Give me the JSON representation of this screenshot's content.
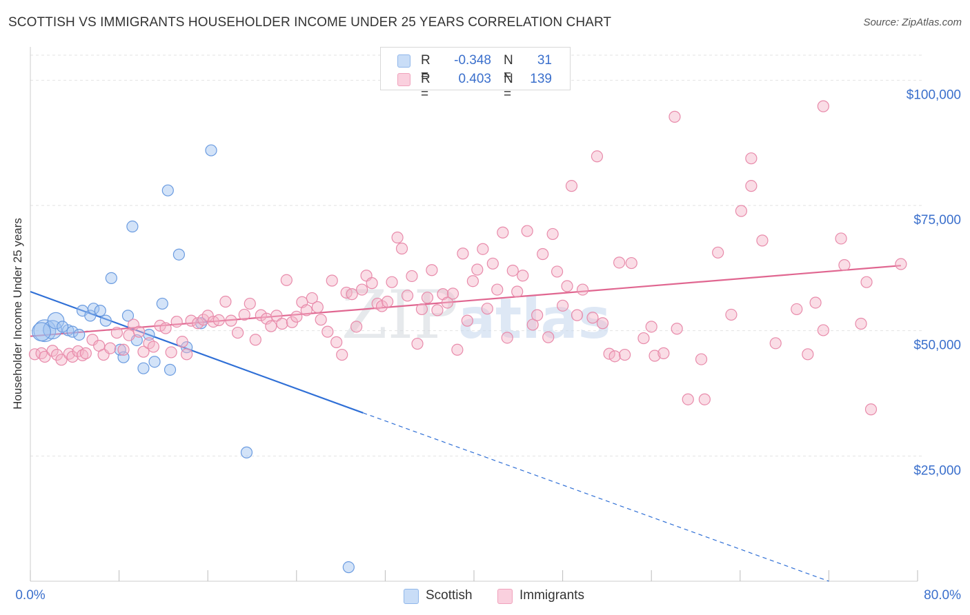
{
  "title": "SCOTTISH VS IMMIGRANTS HOUSEHOLDER INCOME UNDER 25 YEARS CORRELATION CHART",
  "source": "Source: ZipAtlas.com",
  "watermark": "ZIPatlas",
  "legend": {
    "rows": [
      {
        "r_label": "R =",
        "r_value": "-0.348",
        "n_label": "N =",
        "n_value": "31",
        "color": "#9ec2f0"
      },
      {
        "r_label": "R =",
        "r_value": "0.403",
        "n_label": "N =",
        "n_value": "139",
        "color": "#f5b3c8"
      }
    ]
  },
  "bottom_legend": [
    {
      "label": "Scottish",
      "color": "#9ec2f0"
    },
    {
      "label": "Immigrants",
      "color": "#f5b3c8"
    }
  ],
  "chart_data": {
    "type": "scatter",
    "title": "SCOTTISH VS IMMIGRANTS HOUSEHOLDER INCOME UNDER 25 YEARS CORRELATION CHART",
    "xlabel": "",
    "ylabel": "Householder Income Under 25 years",
    "xlim": [
      0,
      80
    ],
    "ylim": [
      0,
      105000
    ],
    "x_tick_labels": [
      "0.0%",
      "80.0%"
    ],
    "y_ticks": [
      25000,
      50000,
      75000,
      100000
    ],
    "y_tick_labels": [
      "$25,000",
      "$50,000",
      "$75,000",
      "$100,000"
    ],
    "grid": true,
    "legend_position": "top-center",
    "series": [
      {
        "name": "Scottish",
        "color": "#9ec2f0",
        "stroke": "#6a9be0",
        "trend_color": "#2f6fd6",
        "trend": {
          "x0": 0,
          "y0": 57800,
          "x1": 30,
          "y1": 33600,
          "dash_to_x": 72,
          "dash_to_y": 0
        },
        "points": [
          [
            1.3,
            50000,
            3
          ],
          [
            2.0,
            50200,
            2
          ],
          [
            1.0,
            49800,
            2
          ],
          [
            2.3,
            52000,
            1.5
          ],
          [
            3.4,
            50100,
            1
          ],
          [
            3.8,
            49800,
            1
          ],
          [
            4.7,
            54000,
            1
          ],
          [
            4.4,
            49200,
            1
          ],
          [
            5.4,
            53000,
            1
          ],
          [
            5.7,
            54400,
            1
          ],
          [
            6.3,
            54000,
            1
          ],
          [
            6.8,
            52000,
            1
          ],
          [
            7.3,
            60500,
            1
          ],
          [
            8.1,
            46200,
            1
          ],
          [
            8.4,
            44700,
            1
          ],
          [
            8.8,
            53000,
            1
          ],
          [
            9.2,
            70800,
            1
          ],
          [
            9.6,
            48100,
            1
          ],
          [
            10.2,
            42500,
            1
          ],
          [
            10.7,
            49200,
            1
          ],
          [
            11.2,
            43800,
            1
          ],
          [
            11.9,
            55400,
            1
          ],
          [
            12.4,
            78000,
            1
          ],
          [
            12.6,
            42200,
            1
          ],
          [
            13.4,
            65200,
            1
          ],
          [
            14.1,
            46700,
            1
          ],
          [
            16.3,
            86000,
            1
          ],
          [
            19.5,
            25700,
            1
          ],
          [
            28.7,
            2800,
            1
          ],
          [
            15.4,
            51500,
            1
          ],
          [
            2.9,
            50800,
            1
          ]
        ]
      },
      {
        "name": "Immigrants",
        "color": "#f5b3c8",
        "stroke": "#e88aaa",
        "trend_color": "#e06690",
        "trend": {
          "x0": 0,
          "y0": 48900,
          "x1": 78.5,
          "y1": 63000
        },
        "points": [
          [
            0.4,
            45300,
            1
          ],
          [
            1.0,
            45500,
            1
          ],
          [
            1.3,
            44800,
            1
          ],
          [
            2.0,
            46000,
            1
          ],
          [
            2.4,
            45200,
            1
          ],
          [
            2.8,
            44200,
            1
          ],
          [
            3.5,
            45400,
            1
          ],
          [
            3.8,
            44800,
            1
          ],
          [
            4.3,
            45900,
            1
          ],
          [
            4.7,
            45100,
            1
          ],
          [
            5.0,
            45500,
            1
          ],
          [
            5.6,
            48200,
            1
          ],
          [
            6.2,
            47000,
            1
          ],
          [
            6.6,
            45200,
            1
          ],
          [
            7.2,
            46500,
            1
          ],
          [
            7.8,
            49600,
            1
          ],
          [
            8.4,
            46200,
            1
          ],
          [
            8.9,
            49100,
            1
          ],
          [
            9.3,
            51200,
            1
          ],
          [
            9.8,
            49800,
            1
          ],
          [
            10.2,
            45800,
            1
          ],
          [
            10.7,
            47500,
            1
          ],
          [
            11.1,
            46800,
            1
          ],
          [
            11.7,
            51000,
            1
          ],
          [
            12.2,
            50500,
            1
          ],
          [
            12.7,
            45700,
            1
          ],
          [
            13.2,
            51800,
            1
          ],
          [
            13.7,
            47800,
            1
          ],
          [
            14.1,
            45300,
            1
          ],
          [
            14.5,
            52000,
            1
          ],
          [
            15.1,
            51500,
            1
          ],
          [
            15.6,
            52200,
            1
          ],
          [
            16.0,
            53000,
            1
          ],
          [
            16.5,
            51800,
            1
          ],
          [
            17.0,
            52100,
            1
          ],
          [
            17.6,
            55800,
            1
          ],
          [
            18.1,
            52000,
            1
          ],
          [
            18.7,
            49600,
            1
          ],
          [
            19.3,
            53200,
            1
          ],
          [
            19.8,
            55400,
            1
          ],
          [
            20.3,
            48200,
            1
          ],
          [
            20.8,
            53100,
            1
          ],
          [
            21.3,
            52400,
            1
          ],
          [
            21.7,
            50900,
            1
          ],
          [
            22.2,
            53000,
            1
          ],
          [
            22.7,
            51400,
            1
          ],
          [
            23.1,
            60100,
            1
          ],
          [
            23.6,
            51700,
            1
          ],
          [
            24.0,
            52800,
            1
          ],
          [
            24.5,
            55700,
            1
          ],
          [
            24.9,
            54100,
            1
          ],
          [
            25.4,
            56500,
            1
          ],
          [
            25.9,
            54700,
            1
          ],
          [
            26.2,
            52200,
            1
          ],
          [
            26.8,
            49800,
            1
          ],
          [
            27.2,
            60000,
            1
          ],
          [
            27.6,
            47700,
            1
          ],
          [
            28.1,
            45200,
            1
          ],
          [
            28.5,
            57600,
            1
          ],
          [
            29.0,
            57300,
            1
          ],
          [
            29.4,
            50800,
            1
          ],
          [
            29.9,
            58200,
            1
          ],
          [
            30.3,
            61000,
            1
          ],
          [
            30.8,
            59500,
            1
          ],
          [
            31.3,
            55400,
            1
          ],
          [
            31.7,
            54900,
            1
          ],
          [
            32.2,
            55800,
            1
          ],
          [
            32.6,
            59700,
            1
          ],
          [
            33.1,
            68600,
            1
          ],
          [
            33.5,
            66400,
            1
          ],
          [
            34.0,
            57000,
            1
          ],
          [
            34.4,
            60900,
            1
          ],
          [
            34.9,
            47400,
            1
          ],
          [
            35.3,
            54300,
            1
          ],
          [
            35.8,
            56600,
            1
          ],
          [
            36.2,
            62100,
            1
          ],
          [
            36.7,
            54100,
            1
          ],
          [
            37.2,
            57300,
            1
          ],
          [
            37.6,
            55600,
            1
          ],
          [
            38.1,
            57400,
            1
          ],
          [
            38.5,
            46200,
            1
          ],
          [
            39.0,
            65400,
            1
          ],
          [
            39.4,
            52000,
            1
          ],
          [
            39.9,
            59900,
            1
          ],
          [
            40.3,
            62200,
            1
          ],
          [
            40.8,
            66300,
            1
          ],
          [
            41.2,
            54400,
            1
          ],
          [
            41.7,
            63400,
            1
          ],
          [
            42.1,
            58200,
            1
          ],
          [
            42.6,
            69600,
            1
          ],
          [
            43.0,
            48600,
            1
          ],
          [
            43.5,
            62000,
            1
          ],
          [
            43.9,
            57800,
            1
          ],
          [
            44.4,
            61000,
            1
          ],
          [
            44.8,
            69900,
            1
          ],
          [
            45.3,
            51200,
            1
          ],
          [
            45.7,
            53100,
            1
          ],
          [
            46.2,
            65300,
            1
          ],
          [
            46.7,
            48700,
            1
          ],
          [
            47.1,
            69300,
            1
          ],
          [
            47.5,
            61800,
            1
          ],
          [
            48.0,
            55000,
            1
          ],
          [
            48.4,
            58900,
            1
          ],
          [
            48.8,
            78900,
            1
          ],
          [
            49.3,
            53100,
            1
          ],
          [
            49.8,
            58200,
            1
          ],
          [
            50.7,
            52600,
            1
          ],
          [
            51.1,
            84800,
            1
          ],
          [
            51.6,
            51500,
            1
          ],
          [
            52.2,
            45400,
            1
          ],
          [
            52.7,
            44900,
            1
          ],
          [
            53.1,
            63600,
            1
          ],
          [
            53.6,
            45200,
            1
          ],
          [
            54.2,
            63500,
            1
          ],
          [
            55.3,
            48500,
            1
          ],
          [
            56.0,
            50800,
            1
          ],
          [
            56.3,
            45000,
            1
          ],
          [
            57.1,
            45500,
            1
          ],
          [
            58.1,
            92700,
            1
          ],
          [
            58.3,
            50400,
            1
          ],
          [
            59.3,
            36300,
            1
          ],
          [
            60.8,
            36300,
            1
          ],
          [
            60.5,
            44300,
            1
          ],
          [
            62.0,
            65600,
            1
          ],
          [
            63.2,
            53200,
            1
          ],
          [
            64.1,
            73900,
            1
          ],
          [
            65.0,
            84400,
            1
          ],
          [
            65.0,
            78900,
            1
          ],
          [
            66.0,
            68000,
            1
          ],
          [
            67.2,
            47500,
            1
          ],
          [
            69.1,
            54300,
            1
          ],
          [
            70.1,
            45300,
            1
          ],
          [
            70.8,
            55600,
            1
          ],
          [
            71.5,
            50100,
            1
          ],
          [
            71.5,
            94800,
            1
          ],
          [
            73.1,
            68400,
            1
          ],
          [
            73.4,
            63100,
            1
          ],
          [
            74.9,
            51400,
            1
          ],
          [
            75.4,
            59700,
            1
          ],
          [
            75.8,
            34300,
            1
          ],
          [
            78.5,
            63300,
            1
          ]
        ]
      }
    ]
  }
}
